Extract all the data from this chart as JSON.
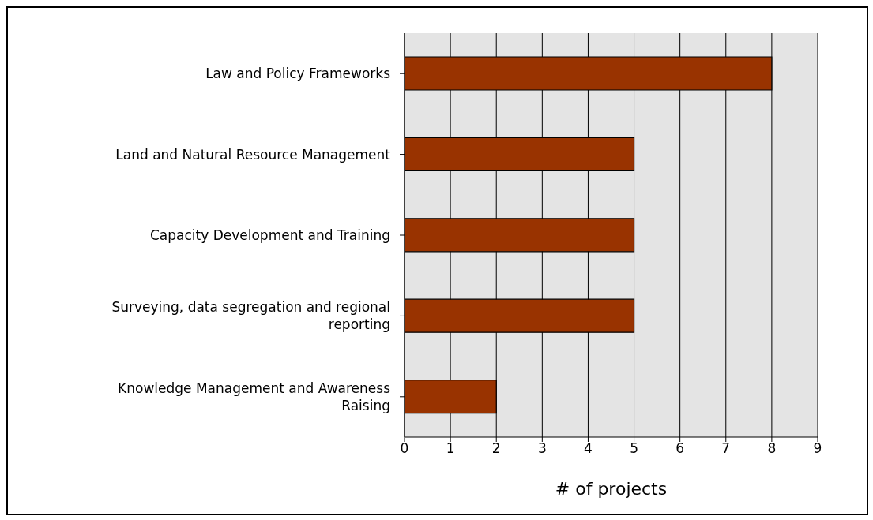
{
  "chart_data": {
    "type": "bar",
    "orientation": "horizontal",
    "xlabel": "# of projects",
    "categories": [
      "Law and Policy Frameworks",
      "Land and Natural Resource Management",
      "Capacity Development and Training",
      "Surveying, data segregation and regional reporting",
      "Knowledge Management and Awareness Raising"
    ],
    "values": [
      8,
      5,
      5,
      5,
      2
    ],
    "color": "#993300",
    "xlim": [
      0,
      9
    ],
    "xticks": [
      0,
      1,
      2,
      3,
      4,
      5,
      6,
      7,
      8,
      9
    ],
    "grid": "x",
    "legend": false
  }
}
